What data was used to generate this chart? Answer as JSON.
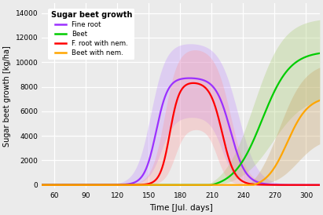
{
  "title": "Sugar beet growth",
  "xlabel": "Time [Jul. days]",
  "ylabel": "Sugar beet growth [kg/ha]",
  "xlim": [
    48,
    313
  ],
  "ylim": [
    -300,
    14800
  ],
  "xticks": [
    60,
    90,
    120,
    150,
    180,
    210,
    240,
    270,
    300
  ],
  "yticks": [
    0,
    2000,
    4000,
    6000,
    8000,
    10000,
    12000,
    14000
  ],
  "bg_color": "#EBEBEB",
  "grid_color": "white",
  "series": [
    {
      "name": "Fine root",
      "color": "#9B30FF",
      "band_color": "#C090FF"
    },
    {
      "name": "Beet",
      "color": "#00CC00",
      "band_color": "#A8CC70"
    },
    {
      "name": "F. root with nem.",
      "color": "#FF0000",
      "band_color": "#FF9090"
    },
    {
      "name": "Beet with nem.",
      "color": "#FFA500",
      "band_color": "#C8A060"
    }
  ]
}
